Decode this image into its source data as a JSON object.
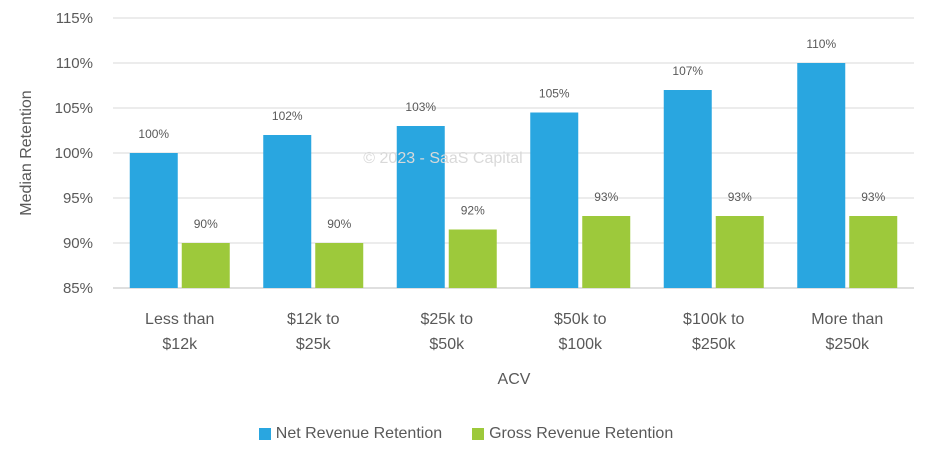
{
  "chart_data": {
    "type": "bar",
    "categories": [
      [
        "Less than",
        "$12k"
      ],
      [
        "$12k to",
        "$25k"
      ],
      [
        "$25k to",
        "$50k"
      ],
      [
        "$50k to",
        "$100k"
      ],
      [
        "$100k to",
        "$250k"
      ],
      [
        "More than",
        "$250k"
      ]
    ],
    "series": [
      {
        "name": "Net Revenue Retention",
        "color": "#29A6E0",
        "values": [
          100,
          102,
          103,
          104.5,
          107,
          110
        ],
        "labels": [
          "100%",
          "102%",
          "103%",
          "105%",
          "107%",
          "110%"
        ]
      },
      {
        "name": "Gross Revenue Retention",
        "color": "#9DC93B",
        "values": [
          90,
          90,
          91.5,
          93,
          93,
          93
        ],
        "labels": [
          "90%",
          "90%",
          "92%",
          "93%",
          "93%",
          "93%"
        ]
      }
    ],
    "xlabel": "ACV",
    "ylabel": "Median Retention",
    "ylim": [
      85,
      115
    ],
    "yticks": [
      85,
      90,
      95,
      100,
      105,
      110,
      115
    ],
    "ytick_labels": [
      "85%",
      "90%",
      "95%",
      "100%",
      "105%",
      "110%",
      "115%"
    ],
    "grid": true,
    "legend_position": "bottom",
    "watermark": "© 2023 - SaaS Capital"
  }
}
